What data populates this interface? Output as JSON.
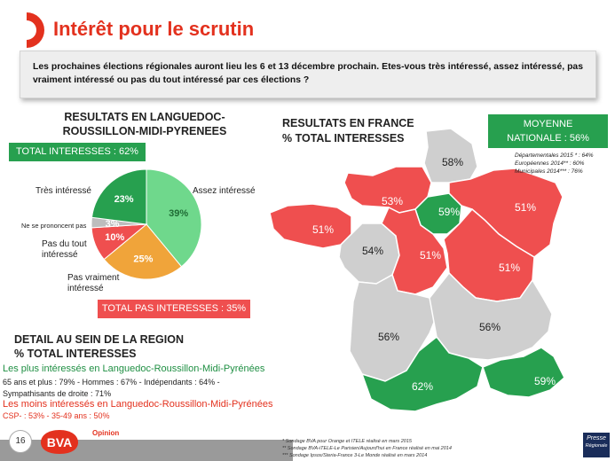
{
  "title": "Intérêt pour le scrutin",
  "question": "Les prochaines élections régionales auront lieu les 6 et 13 décembre prochain. Etes-vous très intéressé, assez intéressé, pas vraiment intéressé ou pas du tout intéressé par ces élections ?",
  "region": {
    "heading_line1": "RESULTATS EN LANGUEDOC-",
    "heading_line2": "ROUSSILLON-MIDI-PYRENEES",
    "total_interesses": "TOTAL INTERESSES : 62%",
    "total_pas_interesses": "TOTAL PAS INTERESSES : 35%",
    "labels": {
      "tres": "Très intéressé",
      "assez": "Assez intéressé",
      "npp": "Ne se prononcent pas",
      "pasdutout_1": "Pas du tout",
      "pasdutout_2": "intéressé",
      "pasvraiment_1": "Pas vraiment",
      "pasvraiment_2": "intéressé"
    }
  },
  "chart_data": [
    {
      "type": "pie",
      "title": "RESULTATS EN LANGUEDOC-ROUSSILLON-MIDI-PYRENEES",
      "categories": [
        "Très intéressé",
        "Assez intéressé",
        "Pas vraiment intéressé",
        "Pas du tout intéressé",
        "Ne se prononcent pas"
      ],
      "values": [
        23,
        39,
        25,
        10,
        3
      ],
      "value_labels": [
        "23%",
        "39%",
        "25%",
        "10%",
        "3%"
      ],
      "colors": [
        "#27a04f",
        "#6fd88c",
        "#f0a43a",
        "#ef4f4f",
        "#bdbdbd"
      ],
      "label_colors": [
        "#ffffff",
        "#1f6b35",
        "#ffffff",
        "#ffffff",
        "#ffffff"
      ]
    },
    {
      "type": "map",
      "title": "RESULTATS EN FRANCE % TOTAL INTERESSES",
      "regions": [
        {
          "name": "Nord-Pas-de-Calais-Picardie",
          "value": 58,
          "label": "58%",
          "color": "#cfcfcf"
        },
        {
          "name": "Normandie",
          "value": 53,
          "label": "53%",
          "color": "#ef4f4f"
        },
        {
          "name": "Île-de-France",
          "value": 59,
          "label": "59%",
          "color": "#27a04f"
        },
        {
          "name": "Alsace-Champagne-Ardenne-Lorraine",
          "value": 51,
          "label": "51%",
          "color": "#ef4f4f"
        },
        {
          "name": "Bretagne",
          "value": 51,
          "label": "51%",
          "color": "#ef4f4f"
        },
        {
          "name": "Pays de la Loire",
          "value": 54,
          "label": "54%",
          "color": "#cfcfcf"
        },
        {
          "name": "Centre-Val de Loire",
          "value": 51,
          "label": "51%",
          "color": "#ef4f4f"
        },
        {
          "name": "Bourgogne-Franche-Comté",
          "value": 51,
          "label": "51%",
          "color": "#ef4f4f"
        },
        {
          "name": "Aquitaine-Limousin-Poitou-Charentes",
          "value": 56,
          "label": "56%",
          "color": "#cfcfcf"
        },
        {
          "name": "Auvergne-Rhône-Alpes",
          "value": 56,
          "label": "56%",
          "color": "#cfcfcf"
        },
        {
          "name": "Languedoc-Roussillon-Midi-Pyrénées",
          "value": 62,
          "label": "62%",
          "color": "#27a04f"
        },
        {
          "name": "Provence-Alpes-Côte d'Azur",
          "value": 59,
          "label": "59%",
          "color": "#27a04f"
        }
      ]
    }
  ],
  "france": {
    "heading_line1": "RESULTATS EN FRANCE",
    "heading_line2": "% TOTAL INTERESSES",
    "moyenne_line1": "MOYENNE",
    "moyenne_line2": "NATIONALE : 56%",
    "ref1": "Départementales 2015 * : 64%",
    "ref2": "Européennes 2014** : 60%",
    "ref3": "Municipales 2014*** : 76%"
  },
  "detail": {
    "heading_line1": "DETAIL AU SEIN DE LA REGION",
    "heading_line2": "% TOTAL INTERESSES",
    "plus_head": "Les plus intéressés en Languedoc-Roussillon-Midi-Pyrénées",
    "plus_text_1": "65 ans et plus : 79% - Hommes : 67% - Indépendants : 64% -",
    "plus_text_2": "Sympathisants de droite : 71%",
    "moins_head": "Les moins intéressés en Languedoc-Roussillon-Midi-Pyrénées",
    "moins_text": "CSP- : 53% - 35-49 ans : 50%"
  },
  "footer": {
    "page": "16",
    "brand": "BVA",
    "opinion": "Opinion",
    "note1": "* Sondage BVA pour Orange et ITELE réalisé en mars 2015",
    "note2": "** Sondage BVA-iTELE-Le Parisien/Aujourd'hui en France réalisé en mai 2014",
    "note3": "*** Sondage Ipsos/Steria-France 3-Le Monde réalisé en mars 2014",
    "presse_1": "Presse",
    "presse_2": "Régionale"
  }
}
